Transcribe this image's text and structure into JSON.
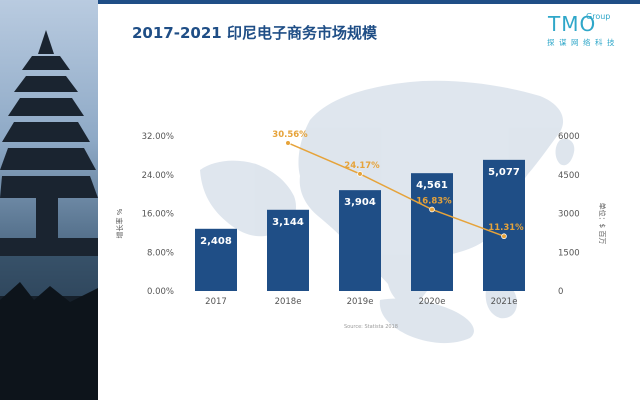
{
  "title": "2017-2021 印尼电子商务市场规模",
  "logo": {
    "main": "TMO",
    "group": "Group",
    "subtitle": "探谋网络科技"
  },
  "source": "Source: Statista 2018",
  "chart_data": {
    "type": "bar",
    "categories": [
      "2017",
      "2018e",
      "2019e",
      "2020e",
      "2021e"
    ],
    "series": [
      {
        "type": "bar",
        "axis": "right",
        "values": [
          2408,
          3144,
          3904,
          4561,
          5077
        ],
        "labels": [
          "2,408",
          "3,144",
          "3,904",
          "4,561",
          "5,077"
        ],
        "color": "#1f4e86"
      },
      {
        "type": "line",
        "axis": "left",
        "values": [
          null,
          30.56,
          24.17,
          16.83,
          11.31
        ],
        "labels": [
          "",
          "30.56%",
          "24.17%",
          "16.83%",
          "11.31%"
        ],
        "color": "#e6a33a"
      }
    ],
    "yleft": {
      "label": "增长率 %",
      "ticks": [
        "0.00%",
        "8.00%",
        "16.00%",
        "24.00%",
        "32.00%"
      ],
      "range": [
        0,
        32
      ]
    },
    "yright": {
      "label": "单位：$ 百万",
      "ticks": [
        "0",
        "1500",
        "3000",
        "4500",
        "6000"
      ],
      "range": [
        0,
        6000
      ]
    },
    "grid": false
  }
}
